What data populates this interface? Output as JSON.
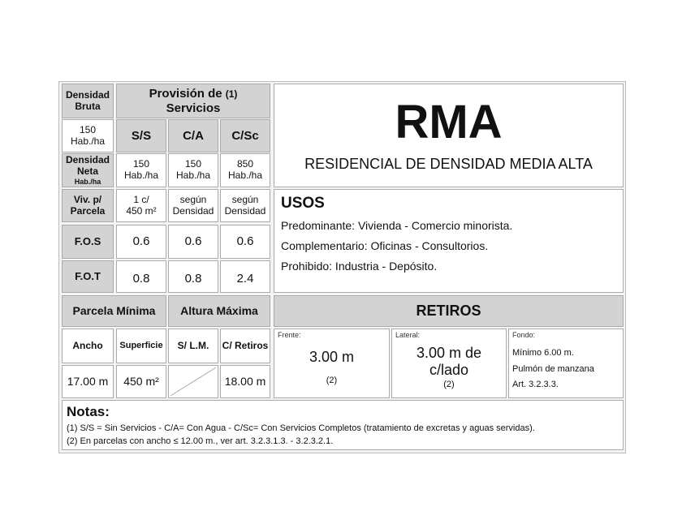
{
  "densidad_bruta": {
    "label1": "Densidad",
    "label2": "Bruta",
    "value1": "150",
    "value2": "Hab./ha"
  },
  "provision": {
    "title": "Provisión de",
    "note": "(1)",
    "title2": "Servicios",
    "cols": [
      "S/S",
      "C/A",
      "C/Sc"
    ]
  },
  "densidad_neta": {
    "label1": "Densidad",
    "label2": "Neta",
    "label3": "Hab./ha",
    "values": [
      [
        "150",
        "Hab./ha"
      ],
      [
        "150",
        "Hab./ha"
      ],
      [
        "850",
        "Hab./ha"
      ]
    ]
  },
  "viv_parcela": {
    "label1": "Viv. p/",
    "label2": "Parcela",
    "values": [
      [
        "1 c/",
        "450 m²"
      ],
      [
        "según",
        "Densidad"
      ],
      [
        "según",
        "Densidad"
      ]
    ]
  },
  "fos": {
    "label": "F.O.S",
    "values": [
      "0.6",
      "0.6",
      "0.6"
    ]
  },
  "fot": {
    "label": "F.O.T",
    "values": [
      "0.8",
      "0.8",
      "2.4"
    ]
  },
  "zone": {
    "code": "RMA",
    "name": "RESIDENCIAL DE DENSIDAD MEDIA ALTA"
  },
  "usos": {
    "title": "USOS",
    "lines": [
      "Predominante: Vivienda - Comercio minorista.",
      "Complementario: Oficinas - Consultorios.",
      "Prohibido: Industria - Depósito."
    ]
  },
  "parcela_minima": {
    "title": "Parcela Mínima",
    "ancho_label": "Ancho",
    "superficie_label": "Superficie",
    "ancho": "17.00 m",
    "superficie": "450 m²"
  },
  "altura_maxima": {
    "title": "Altura Máxima",
    "slm_label": "S/ L.M.",
    "cret_label": "C/ Retiros",
    "cret": "18.00 m"
  },
  "retiros": {
    "title": "RETIROS",
    "frente": {
      "label": "Frente:",
      "value": "3.00 m",
      "note": "(2)"
    },
    "lateral": {
      "label": "Lateral:",
      "value1": "3.00 m de",
      "value2": "c/lado",
      "note": "(2)"
    },
    "fondo": {
      "label": "Fondo:",
      "lines": [
        "Mínimo 6.00 m.",
        "Pulmón de manzana",
        "Art. 3.2.3.3."
      ]
    }
  },
  "notas": {
    "title": "Notas:",
    "lines": [
      "(1) S/S = Sin Servicios - C/A= Con Agua - C/Sc= Con Servicios Completos (tratamiento de excretas y aguas servidas).",
      "(2) En parcelas con ancho  ≤ 12.00 m., ver art. 3.2.3.1.3. - 3.2.3.2.1."
    ]
  }
}
